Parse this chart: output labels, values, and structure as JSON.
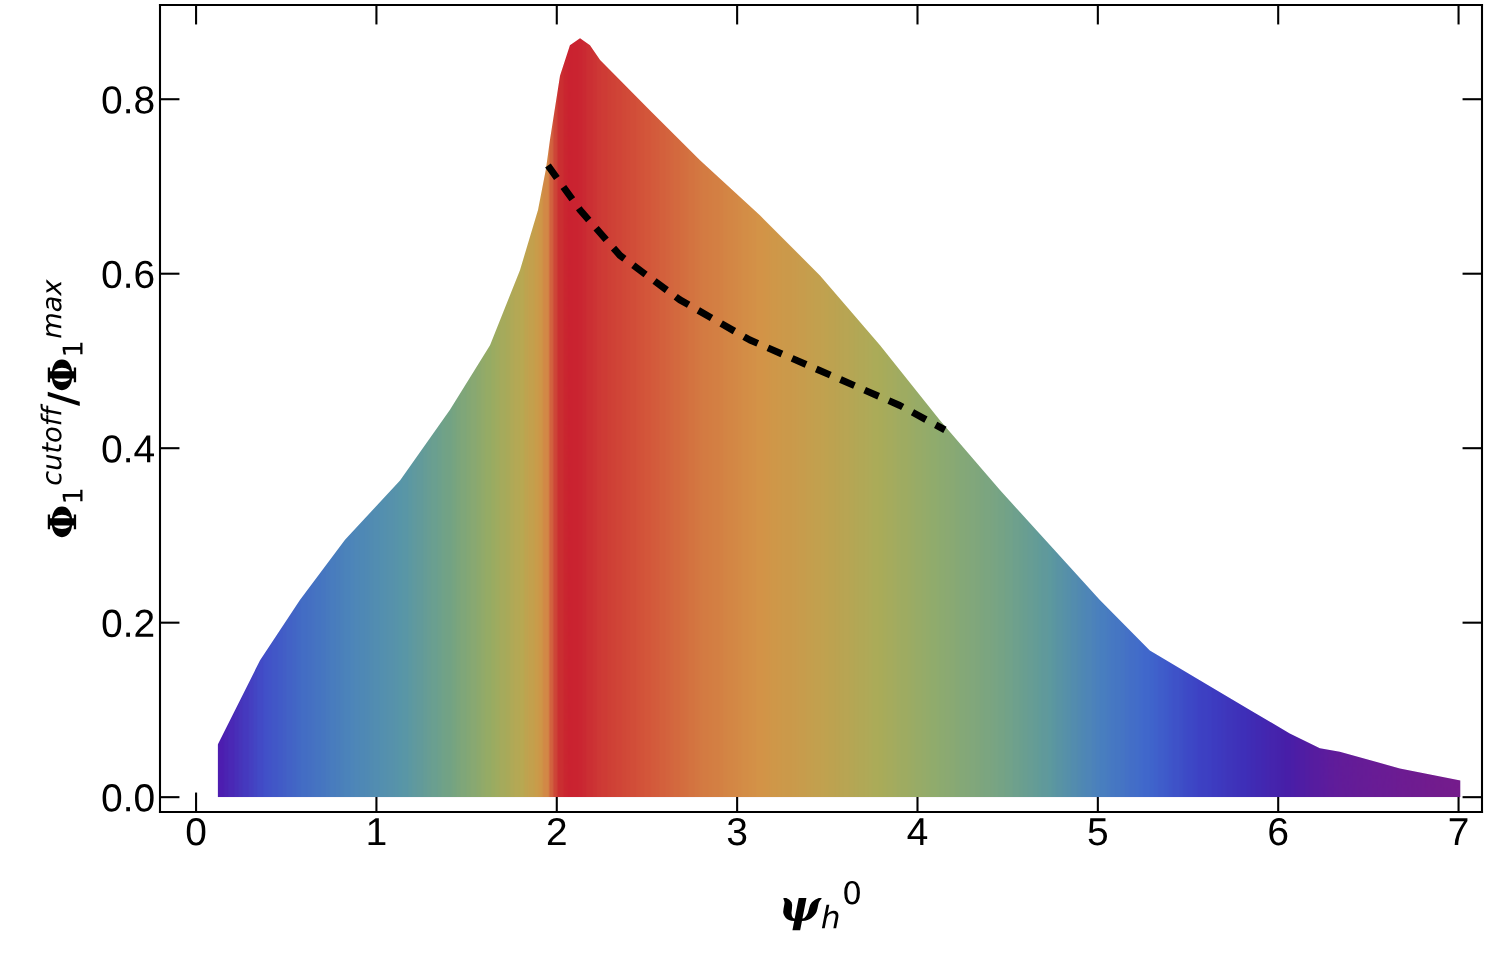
{
  "chart_data": {
    "type": "area",
    "xlabel": "ψ$_{h}$$^{0}$",
    "ylabel": "Φ$_{1}$$^{cutoff}$/Φ$_{1}$$^{max}$",
    "xlim": [
      -0.2,
      7.13
    ],
    "ylim": [
      -0.017,
      0.908
    ],
    "xticks": [
      0,
      1,
      2,
      3,
      4,
      5,
      6,
      7
    ],
    "yticks": [
      {
        "value": 0,
        "label": "0.0"
      },
      0.2,
      0.4,
      0.6,
      0.8
    ],
    "grid": false,
    "legend": false,
    "series": [
      {
        "type": "area",
        "x": [
          0.12,
          0.355,
          0.576,
          0.826,
          1.131,
          1.408,
          1.63,
          1.796,
          1.896,
          1.94,
          1.962,
          2.018,
          2.073,
          2.129,
          2.184,
          2.24,
          2.517,
          2.794,
          3.126,
          3.459,
          3.792,
          4.124,
          4.457,
          4.734,
          5.011,
          5.288,
          5.565,
          5.843,
          6.064,
          6.231,
          6.341,
          6.674,
          7.01
        ],
        "values": [
          0.06,
          0.157,
          0.226,
          0.295,
          0.363,
          0.444,
          0.518,
          0.604,
          0.673,
          0.72,
          0.753,
          0.827,
          0.862,
          0.87,
          0.862,
          0.845,
          0.787,
          0.73,
          0.667,
          0.598,
          0.518,
          0.432,
          0.352,
          0.289,
          0.226,
          0.168,
          0.134,
          0.1,
          0.073,
          0.056,
          0.052,
          0.033,
          0.019
        ],
        "colors": [
          "#4d1eb0",
          "#4055cc",
          "#4276c8",
          "#4c90bc",
          "#5aa4a8",
          "#7ab47e",
          "#a3bc5a",
          "#c6b848",
          "#dca83e",
          "#e3903a",
          "#e06030",
          "#d82a22",
          "#d82222",
          "#d92824",
          "#db3426",
          "#dd3e28",
          "#e3602e",
          "#e48436",
          "#e3a23c",
          "#d0b044",
          "#b5bc50",
          "#96bb68",
          "#7cb480",
          "#60a89c",
          "#4a8cc0",
          "#3f70d0",
          "#3c48c8",
          "#3e30b8",
          "#4820a8",
          "#5a1c9e",
          "#641c98",
          "#701c90",
          "#7a1c88"
        ]
      },
      {
        "type": "line",
        "x": [
          1.951,
          2.129,
          2.35,
          2.683,
          3.071,
          3.514,
          3.902,
          4.152
        ],
        "values": [
          0.724,
          0.673,
          0.621,
          0.57,
          0.524,
          0.484,
          0.449,
          0.421
        ],
        "color": "#000000",
        "line_style": "dashed"
      }
    ]
  }
}
